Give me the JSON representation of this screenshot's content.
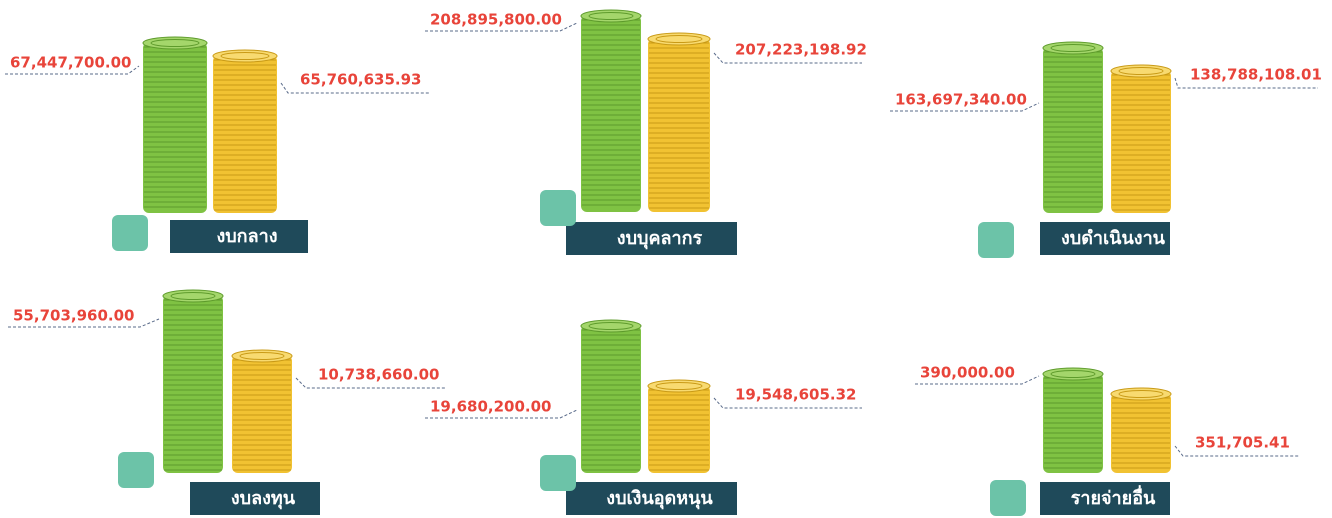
{
  "panels": [
    {
      "title": "งบกลาง",
      "allocated": "67,447,700.00",
      "spent": "65,760,635.93"
    },
    {
      "title": "งบบุคลากร",
      "allocated": "208,895,800.00",
      "spent": "207,223,198.92"
    },
    {
      "title": "งบดำเนินงาน",
      "allocated": "163,697,340.00",
      "spent": "138,788,108.01"
    },
    {
      "title": "งบลงทุน",
      "allocated": "55,703,960.00",
      "spent": "10,738,660.00"
    },
    {
      "title": "งบเงินอุดหนุน",
      "allocated": "19,680,200.00",
      "spent": "19,548,605.32"
    },
    {
      "title": "รายจ่ายอื่น",
      "allocated": "390,000.00",
      "spent": "351,705.41"
    }
  ]
}
